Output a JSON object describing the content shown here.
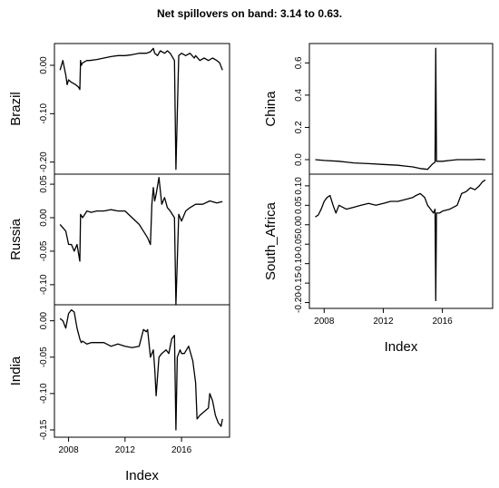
{
  "title": "Net spillovers on band: 3.14 to 0.63.",
  "chart_data": [
    {
      "type": "line",
      "panel": "left-top",
      "ylabel": "Brazil",
      "ylim": [
        -0.225,
        0.045
      ],
      "yticks": [
        "0.00",
        "-0.10",
        "-0.20"
      ],
      "ytick_values": [
        0.0,
        -0.1,
        -0.2
      ],
      "x": [
        2007.4,
        2007.6,
        2007.8,
        2007.9,
        2008.0,
        2008.2,
        2008.5,
        2008.7,
        2008.8,
        2008.85,
        2008.9,
        2009.0,
        2009.3,
        2009.5,
        2010,
        2010.5,
        2011,
        2011.5,
        2012,
        2012.5,
        2013,
        2013.5,
        2013.8,
        2014.0,
        2014.1,
        2014.3,
        2014.5,
        2014.8,
        2015.0,
        2015.2,
        2015.5,
        2015.6,
        2015.8,
        2016.0,
        2016.3,
        2016.6,
        2016.9,
        2017.0,
        2017.3,
        2017.6,
        2017.9,
        2018.2,
        2018.5,
        2018.7,
        2018.9
      ],
      "values": [
        -0.01,
        0.01,
        -0.02,
        -0.04,
        -0.03,
        -0.035,
        -0.04,
        -0.045,
        -0.05,
        0.01,
        0.0,
        0.005,
        0.01,
        0.01,
        0.012,
        0.015,
        0.018,
        0.02,
        0.02,
        0.022,
        0.025,
        0.025,
        0.028,
        0.035,
        0.025,
        0.02,
        0.03,
        0.025,
        0.03,
        0.025,
        0.01,
        -0.215,
        0.02,
        0.025,
        0.02,
        0.025,
        0.015,
        0.02,
        0.01,
        0.015,
        0.01,
        0.015,
        0.01,
        0.005,
        -0.01
      ]
    },
    {
      "type": "line",
      "panel": "left-middle",
      "ylabel": "Russia",
      "ylim": [
        -0.13,
        0.065
      ],
      "yticks": [
        "0.05",
        "0.00",
        "-0.05",
        "-0.10"
      ],
      "ytick_values": [
        0.05,
        0.0,
        -0.05,
        -0.1
      ],
      "x": [
        2007.4,
        2007.6,
        2007.8,
        2008.0,
        2008.2,
        2008.4,
        2008.6,
        2008.8,
        2008.85,
        2009.0,
        2009.3,
        2009.6,
        2010,
        2010.5,
        2011,
        2011.5,
        2012,
        2012.5,
        2013,
        2013.3,
        2013.6,
        2013.8,
        2013.9,
        2014.0,
        2014.1,
        2014.2,
        2014.4,
        2014.6,
        2014.8,
        2015.0,
        2015.2,
        2015.5,
        2015.6,
        2015.8,
        2016.0,
        2016.3,
        2016.6,
        2017.0,
        2017.5,
        2018.0,
        2018.5,
        2018.9
      ],
      "values": [
        -0.01,
        -0.015,
        -0.02,
        -0.04,
        -0.04,
        -0.05,
        -0.04,
        -0.065,
        0.005,
        0.0,
        0.01,
        0.008,
        0.01,
        0.01,
        0.012,
        0.01,
        0.01,
        0.0,
        -0.01,
        -0.02,
        -0.03,
        -0.04,
        0.02,
        0.045,
        0.025,
        0.035,
        0.06,
        0.02,
        0.03,
        0.015,
        0.01,
        0.0,
        -0.13,
        0.005,
        -0.005,
        0.01,
        0.015,
        0.02,
        0.02,
        0.025,
        0.022,
        0.024
      ]
    },
    {
      "type": "line",
      "panel": "left-bottom",
      "ylabel": "India",
      "ylim": [
        -0.16,
        0.022
      ],
      "yticks": [
        "0.00",
        "-0.05",
        "-0.10",
        "-0.15"
      ],
      "ytick_values": [
        0.0,
        -0.05,
        -0.1,
        -0.15
      ],
      "x": [
        2007.4,
        2007.6,
        2007.8,
        2008.0,
        2008.2,
        2008.4,
        2008.6,
        2008.8,
        2008.9,
        2009.0,
        2009.3,
        2009.6,
        2010,
        2010.5,
        2011,
        2011.5,
        2012,
        2012.5,
        2013,
        2013.3,
        2013.5,
        2013.6,
        2013.8,
        2014.0,
        2014.1,
        2014.2,
        2014.4,
        2014.6,
        2014.9,
        2015.1,
        2015.3,
        2015.5,
        2015.6,
        2015.7,
        2015.9,
        2016.0,
        2016.2,
        2016.5,
        2016.8,
        2017.0,
        2017.1,
        2017.3,
        2017.6,
        2017.9,
        2018.0,
        2018.2,
        2018.4,
        2018.6,
        2018.8,
        2018.9
      ],
      "values": [
        0.003,
        0.0,
        -0.01,
        0.01,
        0.015,
        0.012,
        -0.01,
        -0.025,
        -0.03,
        -0.028,
        -0.032,
        -0.03,
        -0.03,
        -0.03,
        -0.035,
        -0.032,
        -0.035,
        -0.037,
        -0.035,
        -0.012,
        -0.015,
        -0.012,
        -0.05,
        -0.04,
        -0.065,
        -0.103,
        -0.05,
        -0.045,
        -0.04,
        -0.045,
        -0.025,
        -0.02,
        -0.15,
        -0.05,
        -0.04,
        -0.045,
        -0.045,
        -0.035,
        -0.055,
        -0.085,
        -0.135,
        -0.13,
        -0.125,
        -0.12,
        -0.1,
        -0.11,
        -0.13,
        -0.14,
        -0.145,
        -0.135
      ]
    },
    {
      "type": "line",
      "panel": "right-top",
      "ylabel": "China",
      "ylim": [
        -0.09,
        0.72
      ],
      "yticks": [
        "0.6",
        "0.4",
        "0.2",
        "0.0"
      ],
      "ytick_values": [
        0.6,
        0.4,
        0.2,
        0.0
      ],
      "x": [
        2007.4,
        2008,
        2009,
        2010,
        2011,
        2012,
        2013,
        2013.5,
        2014,
        2014.5,
        2015,
        2015.2,
        2015.3,
        2015.5,
        2015.55,
        2015.6,
        2016,
        2016.5,
        2017,
        2017.5,
        2018,
        2018.5,
        2018.9
      ],
      "values": [
        0.0,
        -0.005,
        -0.01,
        -0.02,
        -0.025,
        -0.03,
        -0.035,
        -0.04,
        -0.045,
        -0.055,
        -0.06,
        -0.04,
        -0.03,
        -0.015,
        0.69,
        -0.01,
        -0.01,
        -0.005,
        0.0,
        0.0,
        0.0,
        0.002,
        0.0
      ]
    },
    {
      "type": "line",
      "panel": "right-bottom",
      "ylabel": "South_Africa",
      "ylim": [
        -0.215,
        0.13
      ],
      "yticks": [
        "0.10",
        "0.05",
        "0.00",
        "-0.05",
        "-0.10",
        "-0.15",
        "-0.20"
      ],
      "ytick_values": [
        0.1,
        0.05,
        0.0,
        -0.05,
        -0.1,
        -0.15,
        -0.2
      ],
      "x": [
        2007.4,
        2007.6,
        2007.8,
        2008.0,
        2008.2,
        2008.4,
        2008.6,
        2008.8,
        2009.0,
        2009.5,
        2010,
        2010.5,
        2011,
        2011.5,
        2012,
        2012.5,
        2013,
        2013.5,
        2014,
        2014.2,
        2014.5,
        2014.8,
        2015.0,
        2015.2,
        2015.4,
        2015.5,
        2015.55,
        2015.6,
        2015.8,
        2016.0,
        2016.5,
        2017.0,
        2017.1,
        2017.3,
        2017.6,
        2017.9,
        2018.2,
        2018.5,
        2018.7,
        2018.9
      ],
      "values": [
        0.02,
        0.025,
        0.04,
        0.06,
        0.07,
        0.075,
        0.05,
        0.03,
        0.05,
        0.04,
        0.045,
        0.05,
        0.055,
        0.05,
        0.055,
        0.06,
        0.06,
        0.065,
        0.07,
        0.075,
        0.08,
        0.07,
        0.05,
        0.04,
        0.03,
        0.04,
        -0.195,
        0.03,
        0.03,
        0.035,
        0.04,
        0.05,
        0.06,
        0.08,
        0.085,
        0.095,
        0.09,
        0.1,
        0.11,
        0.115
      ]
    }
  ],
  "x_axis": {
    "label": "Index",
    "ticks": [
      "2008",
      "2012",
      "2016"
    ],
    "tick_values": [
      2008,
      2012,
      2016
    ],
    "xlim": [
      2007,
      2019.4
    ]
  }
}
